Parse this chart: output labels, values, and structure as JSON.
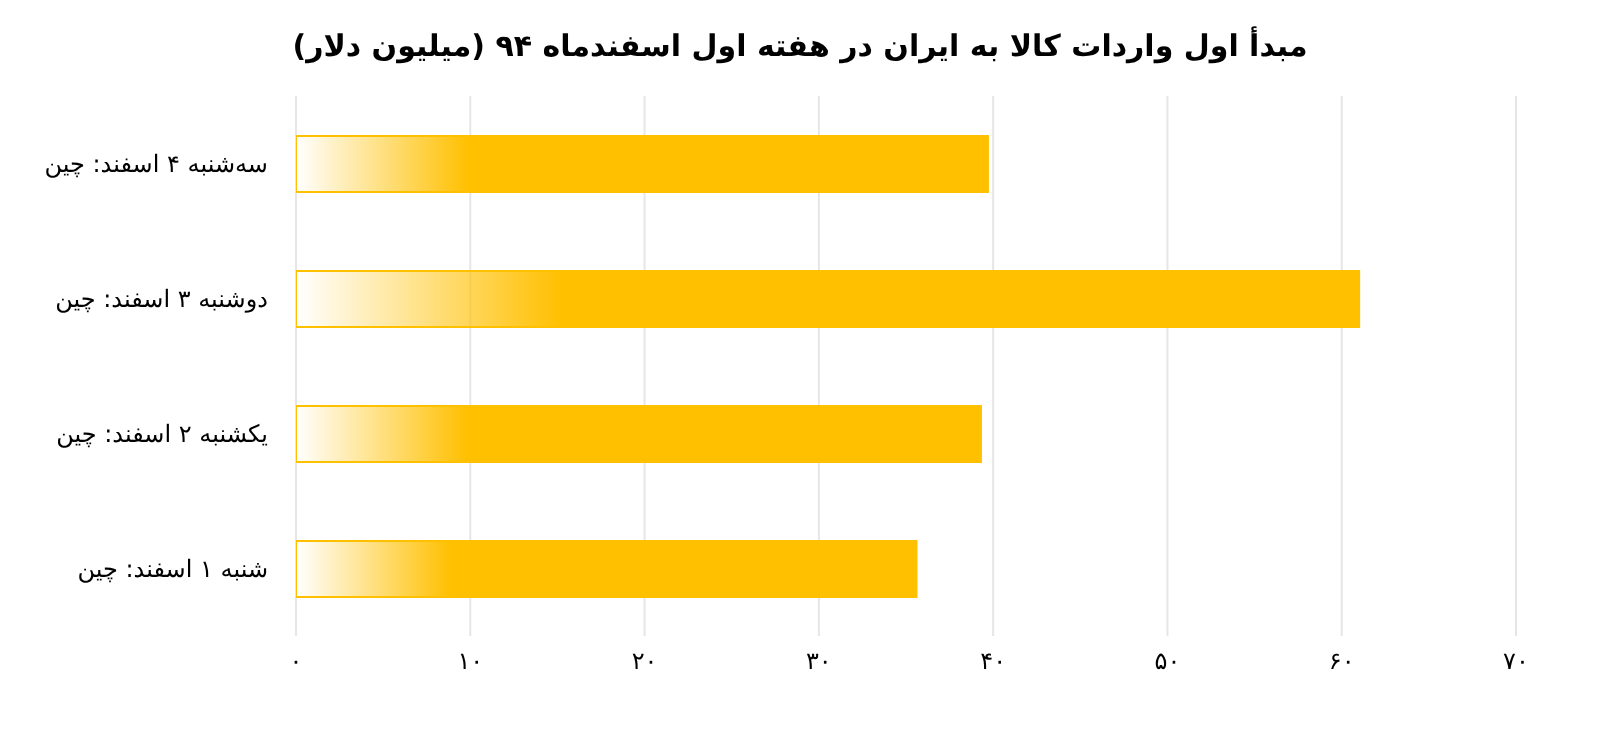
{
  "chart_data": {
    "type": "bar",
    "orientation": "horizontal",
    "title": "مبدأ اول واردات کالا به ایران در هفته اول اسفندماه ۹۴ (میلیون دلار)",
    "categories": [
      "سه‌شنبه ۴ اسفند: چین",
      "دوشنبه ۳ اسفند: چین",
      "یکشنبه ۲ اسفند: چین",
      "شنبه ۱ اسفند: چین"
    ],
    "values": [
      39.7,
      61,
      39.3,
      35.6
    ],
    "color": "#ffc000",
    "xlim": [
      0,
      70
    ],
    "xticks": [
      {
        "value": 0,
        "label": "۰"
      },
      {
        "value": 10,
        "label": "۱۰"
      },
      {
        "value": 20,
        "label": "۲۰"
      },
      {
        "value": 30,
        "label": "۳۰"
      },
      {
        "value": 40,
        "label": "۴۰"
      },
      {
        "value": 50,
        "label": "۵۰"
      },
      {
        "value": 60,
        "label": "۶۰"
      },
      {
        "value": 70,
        "label": "۷۰"
      }
    ],
    "grid": "x",
    "legend": false
  }
}
